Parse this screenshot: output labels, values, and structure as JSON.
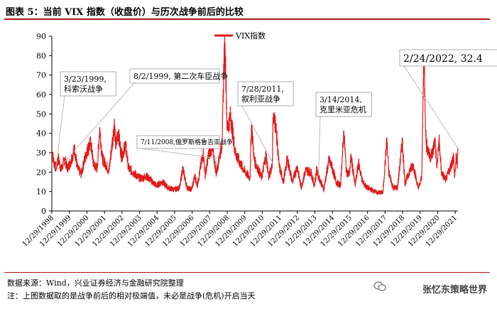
{
  "figure": {
    "title": "图表 5：当前 VIX 指数（收盘价）与历次战争前后的比较",
    "source_note": "数据来源：Wind，兴业证券经济与金融研究院整理",
    "footnote": "注：上图数据取的是战争前后的相对极端值，未必是战争(危机)开启当天",
    "watermark": "张忆东策略世界"
  },
  "chart_data": {
    "type": "line",
    "legend": {
      "label": "VIX指数",
      "position": "top"
    },
    "ylim": [
      0,
      90
    ],
    "yticks": [
      "0",
      "10",
      "20",
      "30",
      "40",
      "50",
      "60",
      "70",
      "80",
      "90"
    ],
    "xlim": [
      "1998-12-29",
      "2022-02-24"
    ],
    "xticks": [
      "12/29/1998",
      "12/29/1999",
      "12/29/2000",
      "12/29/2001",
      "12/29/2002",
      "12/29/2003",
      "12/29/2004",
      "12/29/2005",
      "12/29/2006",
      "12/29/2007",
      "12/29/2008",
      "12/29/2009",
      "12/29/2010",
      "12/29/2011",
      "12/29/2012",
      "12/29/2013",
      "12/29/2014",
      "12/29/2015",
      "12/29/2016",
      "12/29/2017",
      "12/29/2018",
      "12/29/2019",
      "12/29/2020",
      "12/29/2021"
    ],
    "series": [
      {
        "name": "VIX指数",
        "color": "#e11b1b",
        "points": [
          [
            "1998-12-29",
            32
          ],
          [
            "1999-02-01",
            26
          ],
          [
            "1999-03-23",
            22
          ],
          [
            "1999-05-15",
            27
          ],
          [
            "1999-07-15",
            21
          ],
          [
            "1999-09-20",
            27
          ],
          [
            "1999-11-20",
            22
          ],
          [
            "2000-01-20",
            25
          ],
          [
            "2000-04-15",
            32
          ],
          [
            "2000-06-15",
            22
          ],
          [
            "2000-09-01",
            19
          ],
          [
            "2000-12-15",
            30
          ],
          [
            "2001-03-20",
            35
          ],
          [
            "2001-05-15",
            24
          ],
          [
            "2001-08-01",
            22
          ],
          [
            "2001-09-20",
            43
          ],
          [
            "2001-11-15",
            27
          ],
          [
            "2002-02-15",
            23
          ],
          [
            "2002-04-01",
            20
          ],
          [
            "2002-07-24",
            45
          ],
          [
            "2002-08-20",
            33
          ],
          [
            "2002-10-10",
            41
          ],
          [
            "2002-12-20",
            28
          ],
          [
            "2003-03-15",
            34
          ],
          [
            "2003-05-15",
            22
          ],
          [
            "2003-08-15",
            20
          ],
          [
            "2003-12-15",
            17
          ],
          [
            "2004-03-15",
            17
          ],
          [
            "2004-05-15",
            18
          ],
          [
            "2004-08-15",
            16
          ],
          [
            "2004-12-15",
            13
          ],
          [
            "2005-04-15",
            15
          ],
          [
            "2005-08-15",
            12
          ],
          [
            "2005-12-15",
            11
          ],
          [
            "2006-04-15",
            12
          ],
          [
            "2006-06-15",
            22
          ],
          [
            "2006-09-15",
            12
          ],
          [
            "2006-12-15",
            11
          ],
          [
            "2007-02-27",
            18
          ],
          [
            "2007-04-15",
            13
          ],
          [
            "2007-08-16",
            30
          ],
          [
            "2007-10-01",
            18
          ],
          [
            "2007-11-26",
            28
          ],
          [
            "2008-01-22",
            32
          ],
          [
            "2008-03-15",
            30
          ],
          [
            "2008-05-15",
            19
          ],
          [
            "2008-07-11",
            27
          ],
          [
            "2008-09-15",
            35
          ],
          [
            "2008-10-24",
            81
          ],
          [
            "2008-11-20",
            80
          ],
          [
            "2008-12-29",
            42
          ],
          [
            "2009-03-09",
            49
          ],
          [
            "2009-06-15",
            30
          ],
          [
            "2009-09-15",
            25
          ],
          [
            "2009-12-15",
            21
          ],
          [
            "2010-04-15",
            17
          ],
          [
            "2010-05-20",
            45
          ],
          [
            "2010-07-15",
            26
          ],
          [
            "2010-10-15",
            21
          ],
          [
            "2010-12-15",
            17
          ],
          [
            "2011-03-16",
            29
          ],
          [
            "2011-05-15",
            17
          ],
          [
            "2011-07-28",
            25
          ],
          [
            "2011-08-08",
            48
          ],
          [
            "2011-10-03",
            45
          ],
          [
            "2011-12-15",
            23
          ],
          [
            "2012-03-15",
            15
          ],
          [
            "2012-06-01",
            27
          ],
          [
            "2012-09-15",
            15
          ],
          [
            "2012-12-28",
            23
          ],
          [
            "2013-03-15",
            12
          ],
          [
            "2013-06-20",
            21
          ],
          [
            "2013-10-08",
            20
          ],
          [
            "2013-12-15",
            13
          ],
          [
            "2014-02-03",
            21
          ],
          [
            "2014-03-14",
            18
          ],
          [
            "2014-07-01",
            11
          ],
          [
            "2014-10-15",
            26
          ],
          [
            "2014-12-16",
            23
          ],
          [
            "2015-03-15",
            15
          ],
          [
            "2015-06-15",
            13
          ],
          [
            "2015-08-24",
            41
          ],
          [
            "2015-10-15",
            20
          ],
          [
            "2015-12-15",
            19
          ],
          [
            "2016-01-20",
            28
          ],
          [
            "2016-04-15",
            13
          ],
          [
            "2016-06-24",
            25
          ],
          [
            "2016-09-15",
            15
          ],
          [
            "2016-12-15",
            12
          ],
          [
            "2017-03-15",
            11
          ],
          [
            "2017-07-15",
            9.5
          ],
          [
            "2017-11-15",
            9.5
          ],
          [
            "2018-02-05",
            37
          ],
          [
            "2018-03-15",
            20
          ],
          [
            "2018-06-15",
            12
          ],
          [
            "2018-09-15",
            12
          ],
          [
            "2018-12-24",
            36
          ],
          [
            "2019-02-15",
            14
          ],
          [
            "2019-05-15",
            20
          ],
          [
            "2019-08-05",
            24
          ],
          [
            "2019-11-15",
            12
          ],
          [
            "2019-12-30",
            14
          ],
          [
            "2020-02-01",
            18
          ],
          [
            "2020-03-16",
            82
          ],
          [
            "2020-05-01",
            35
          ],
          [
            "2020-07-15",
            28
          ],
          [
            "2020-09-15",
            30
          ],
          [
            "2020-11-02",
            37
          ],
          [
            "2020-12-15",
            22
          ],
          [
            "2021-01-27",
            37
          ],
          [
            "2021-03-15",
            20
          ],
          [
            "2021-06-15",
            16
          ],
          [
            "2021-09-15",
            22
          ],
          [
            "2021-11-26",
            28
          ],
          [
            "2021-12-15",
            17
          ],
          [
            "2022-01-24",
            29
          ],
          [
            "2022-02-10",
            22
          ],
          [
            "2022-02-24",
            32.4
          ]
        ]
      }
    ],
    "annotations": [
      {
        "label": "3/23/1999,\n科索沃战争",
        "x": "1999-03-23",
        "y": 22
      },
      {
        "label": "8/2/1999, 第二次车臣战争",
        "x": "1999-08-02",
        "y": 24
      },
      {
        "label": "7/11/2008,俄罗斯格鲁吉亚战争",
        "x": "2008-07-11",
        "y": 27
      },
      {
        "label": "7/28/2011,\n叙利亚战争",
        "x": "2011-07-28",
        "y": 25
      },
      {
        "label": "3/14/2014,\n克里米亚危机",
        "x": "2014-03-14",
        "y": 18
      },
      {
        "label": "2/24/2022, 32.4",
        "x": "2022-02-24",
        "y": 32.4
      }
    ]
  }
}
